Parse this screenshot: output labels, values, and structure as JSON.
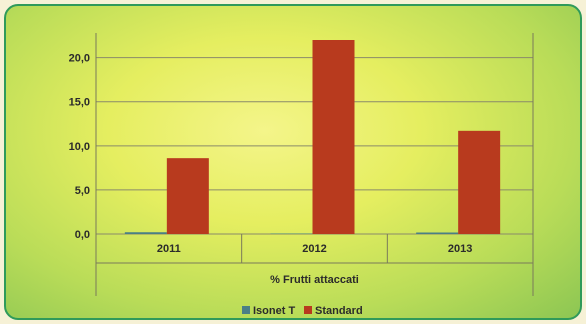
{
  "chart_data": {
    "type": "bar",
    "categories": [
      "2011",
      "2012",
      "2013"
    ],
    "category_group_label": "% Frutti attaccati",
    "series": [
      {
        "name": "Isonet T",
        "values": [
          0.2,
          0.0,
          0.1
        ],
        "color": "#4a7f86"
      },
      {
        "name": "Standard",
        "values": [
          8.6,
          22.0,
          11.7
        ],
        "color": "#b83a1e"
      }
    ],
    "yticks": [
      "0,0",
      "5,0",
      "10,0",
      "15,0",
      "20,0"
    ],
    "ylim": [
      0,
      22
    ],
    "grid": true,
    "legend_position": "bottom"
  }
}
